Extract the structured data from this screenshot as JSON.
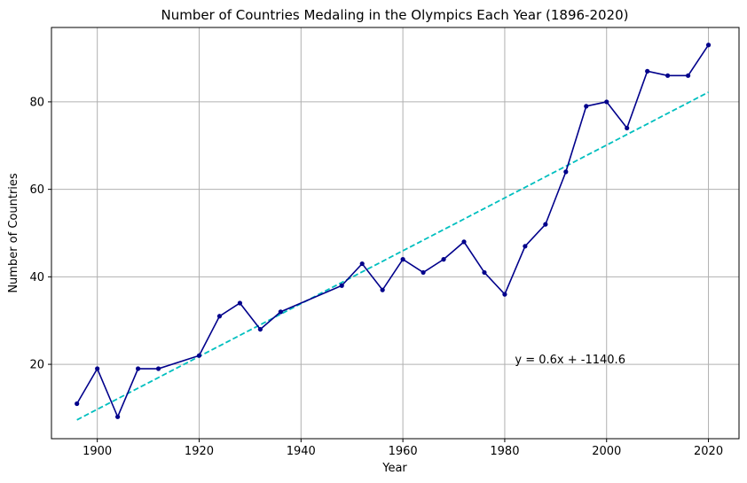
{
  "chart_data": {
    "type": "line",
    "title": "Number of Countries Medaling in the Olympics Each Year (1896-2020)",
    "xlabel": "Year",
    "ylabel": "Number of Countries",
    "xlim": [
      1891,
      2026
    ],
    "ylim": [
      3,
      97
    ],
    "xticks": [
      1900,
      1920,
      1940,
      1960,
      1980,
      2000,
      2020
    ],
    "yticks": [
      20,
      40,
      60,
      80
    ],
    "grid": true,
    "series": [
      {
        "color": "#00008b",
        "marker": "circle",
        "x": [
          1896,
          1900,
          1904,
          1908,
          1912,
          1920,
          1924,
          1928,
          1932,
          1936,
          1948,
          1952,
          1956,
          1960,
          1964,
          1968,
          1972,
          1976,
          1980,
          1984,
          1988,
          1992,
          1996,
          2000,
          2004,
          2008,
          2012,
          2016,
          2020
        ],
        "y": [
          11,
          19,
          8,
          19,
          19,
          22,
          31,
          34,
          28,
          32,
          38,
          43,
          37,
          44,
          41,
          44,
          48,
          41,
          36,
          47,
          52,
          64,
          79,
          80,
          74,
          87,
          86,
          86,
          93
        ]
      }
    ],
    "trendline": {
      "color": "#00bfbf",
      "style": "dashed",
      "x": [
        1896,
        2020
      ],
      "y": [
        7.3,
        82.2
      ]
    },
    "annotation": {
      "text": "y = 0.6x + -1140.6",
      "x": 1982,
      "y": 21
    }
  }
}
